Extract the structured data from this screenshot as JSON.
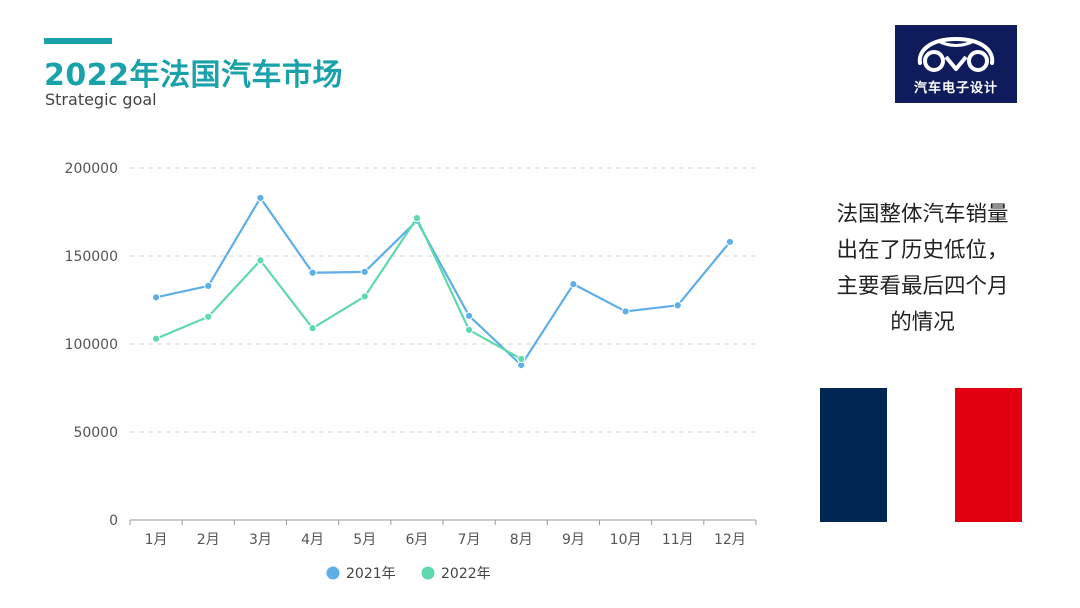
{
  "header": {
    "title": "2022年法国汽车市场",
    "subtitle": "Strategic goal",
    "accent_color": "#1aa2ab"
  },
  "logo": {
    "text": "汽车电子设计",
    "background": "#0f1c5c",
    "icon": "car-outline-icon"
  },
  "note": {
    "lines": [
      "法国整体汽车销量",
      "出在了历史低位，",
      "主要看最后四个月",
      "的情况"
    ]
  },
  "flag": {
    "colors": [
      "#002654",
      "#ffffff",
      "#e1000f"
    ]
  },
  "chart_data": {
    "type": "line",
    "title": "",
    "xlabel": "",
    "ylabel": "",
    "categories": [
      "1月",
      "2月",
      "3月",
      "4月",
      "5月",
      "6月",
      "7月",
      "8月",
      "9月",
      "10月",
      "11月",
      "12月"
    ],
    "ylim": [
      0,
      200000
    ],
    "yticks": [
      0,
      50000,
      100000,
      150000,
      200000
    ],
    "grid": true,
    "legend": "bottom-center",
    "series": [
      {
        "name": "2021年",
        "color": "#5eaee8",
        "values": [
          126500,
          133000,
          183000,
          140500,
          141000,
          170000,
          116000,
          88000,
          134000,
          118500,
          122000,
          158000
        ]
      },
      {
        "name": "2022年",
        "color": "#5fd8ad",
        "values": [
          103000,
          115500,
          147500,
          109000,
          127000,
          171500,
          108000,
          91500,
          null,
          null,
          null,
          null
        ]
      }
    ]
  }
}
